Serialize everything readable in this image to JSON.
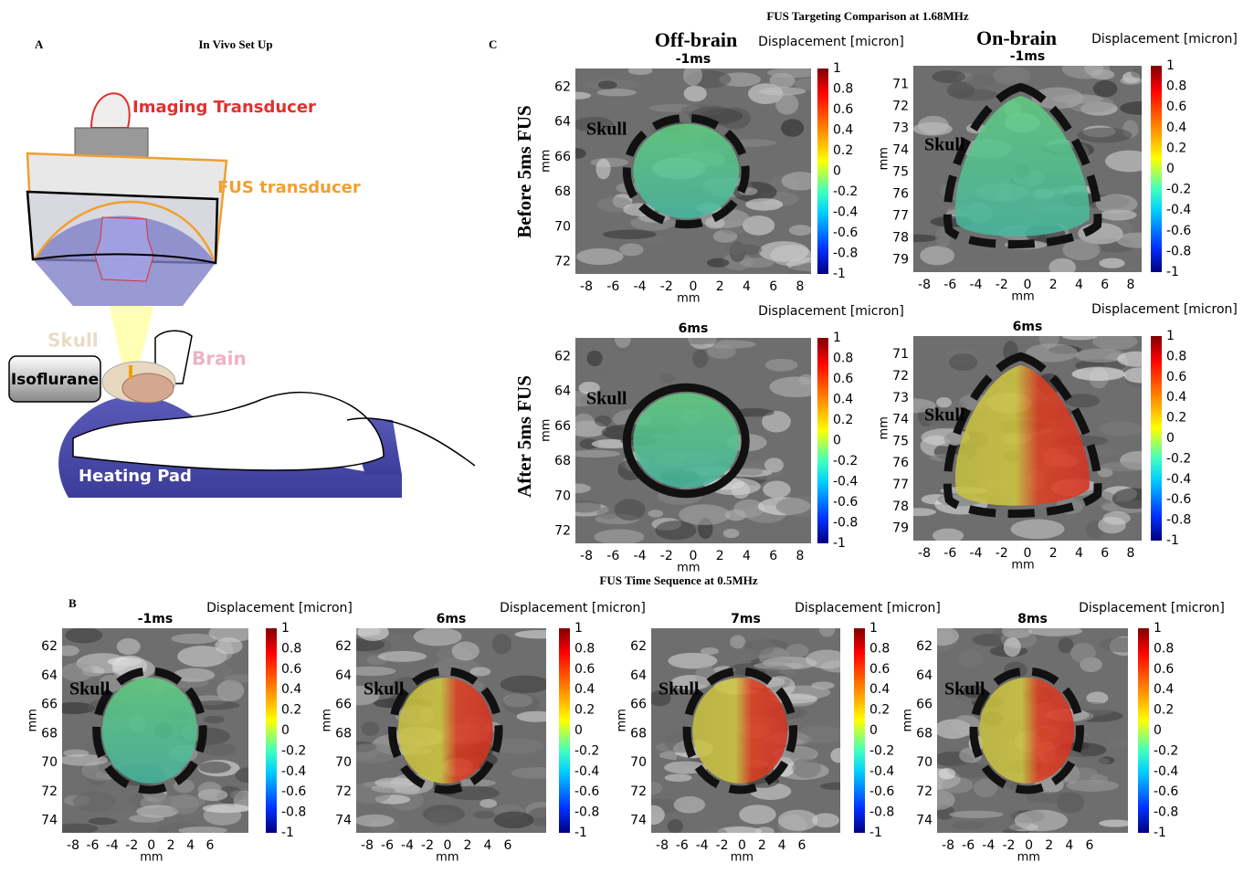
{
  "panel_a": {
    "letter": "A",
    "title": "In Vivo Set Up",
    "labels": {
      "imaging_transducer": "Imaging Transducer",
      "fus_transducer": "FUS transducer",
      "skull": "Skull",
      "brain": "Brain",
      "isoflurane": "Isoflurane",
      "heating_pad": "Heating Pad"
    }
  },
  "panel_c": {
    "letter": "C",
    "title": "FUS Targeting Comparison at 1.68MHz",
    "columns": [
      "Off-brain",
      "On-brain"
    ],
    "rows": [
      "Before 5ms FUS",
      "After 5ms FUS"
    ],
    "plots": [
      {
        "time": "-1ms",
        "colorbar_label": "Displacement [micron]",
        "colorbar_ticks": [
          "1",
          "0.8",
          "0.6",
          "0.4",
          "0.2",
          "0",
          "-0.2",
          "-0.4",
          "-0.6",
          "-0.8",
          "-1"
        ],
        "yticks": [
          "62",
          "64",
          "66",
          "68",
          "70",
          "72"
        ],
        "xticks": [
          "-8",
          "-6",
          "-4",
          "-2",
          "0",
          "2",
          "4",
          "6",
          "8"
        ],
        "xlabel": "mm",
        "ylabel": "mm",
        "skull_label": "Skull"
      },
      {
        "time": "-1ms",
        "colorbar_label": "Displacement [micron]",
        "colorbar_ticks": [
          "1",
          "0.8",
          "0.6",
          "0.4",
          "0.2",
          "0",
          "-0.2",
          "-0.4",
          "-0.6",
          "-0.8",
          "-1"
        ],
        "yticks": [
          "71",
          "72",
          "73",
          "74",
          "75",
          "76",
          "77",
          "78",
          "79"
        ],
        "xticks": [
          "-8",
          "-6",
          "-4",
          "-2",
          "0",
          "2",
          "4",
          "6",
          "8"
        ],
        "xlabel": "mm",
        "ylabel": "mm",
        "skull_label": "Skull"
      },
      {
        "time": "6ms",
        "colorbar_label": "Displacement [micron]",
        "colorbar_ticks": [
          "1",
          "0.8",
          "0.6",
          "0.4",
          "0.2",
          "0",
          "-0.2",
          "-0.4",
          "-0.6",
          "-0.8",
          "-1"
        ],
        "yticks": [
          "62",
          "64",
          "66",
          "68",
          "70",
          "72"
        ],
        "xticks": [
          "-8",
          "-6",
          "-4",
          "-2",
          "0",
          "2",
          "4",
          "6",
          "8"
        ],
        "xlabel": "mm",
        "ylabel": "mm",
        "skull_label": "Skull"
      },
      {
        "time": "6ms",
        "colorbar_label": "Displacement [micron]",
        "colorbar_ticks": [
          "1",
          "0.8",
          "0.6",
          "0.4",
          "0.2",
          "0",
          "-0.2",
          "-0.4",
          "-0.6",
          "-0.8",
          "-1"
        ],
        "yticks": [
          "71",
          "72",
          "73",
          "74",
          "75",
          "76",
          "77",
          "78",
          "79"
        ],
        "xticks": [
          "-8",
          "-6",
          "-4",
          "-2",
          "0",
          "2",
          "4",
          "6",
          "8"
        ],
        "xlabel": "mm",
        "ylabel": "mm",
        "skull_label": "Skull"
      }
    ]
  },
  "panel_b": {
    "letter": "B",
    "title": "FUS Time Sequence at 0.5MHz",
    "plots": [
      {
        "time": "-1ms",
        "colorbar_label": "Displacement [micron]",
        "colorbar_ticks": [
          "1",
          "0.8",
          "0.6",
          "0.4",
          "0.2",
          "0",
          "-0.2",
          "-0.4",
          "-0.6",
          "-0.8",
          "-1"
        ],
        "yticks": [
          "62",
          "64",
          "66",
          "68",
          "70",
          "72",
          "74"
        ],
        "xticks": [
          "-8",
          "-6",
          "-4",
          "-2",
          "0",
          "2",
          "4",
          "6"
        ],
        "xlabel": "mm",
        "ylabel": "mm",
        "skull_label": "Skull"
      },
      {
        "time": "6ms",
        "colorbar_label": "Displacement [micron]",
        "colorbar_ticks": [
          "1",
          "0.8",
          "0.6",
          "0.4",
          "0.2",
          "0",
          "-0.2",
          "-0.4",
          "-0.6",
          "-0.8",
          "-1"
        ],
        "yticks": [
          "62",
          "64",
          "66",
          "68",
          "70",
          "72",
          "74"
        ],
        "xticks": [
          "-8",
          "-6",
          "-4",
          "-2",
          "0",
          "2",
          "4",
          "6"
        ],
        "xlabel": "mm",
        "ylabel": "mm",
        "skull_label": "Skull"
      },
      {
        "time": "7ms",
        "colorbar_label": "Displacement [micron]",
        "colorbar_ticks": [
          "1",
          "0.8",
          "0.6",
          "0.4",
          "0.2",
          "0",
          "-0.2",
          "-0.4",
          "-0.6",
          "-0.8",
          "-1"
        ],
        "yticks": [
          "62",
          "64",
          "66",
          "68",
          "70",
          "72",
          "74"
        ],
        "xticks": [
          "-8",
          "-6",
          "-4",
          "-2",
          "0",
          "2",
          "4",
          "6"
        ],
        "xlabel": "mm",
        "ylabel": "mm",
        "skull_label": "Skull"
      },
      {
        "time": "8ms",
        "colorbar_label": "Displacement [micron]",
        "colorbar_ticks": [
          "1",
          "0.8",
          "0.6",
          "0.4",
          "0.2",
          "0",
          "-0.2",
          "-0.4",
          "-0.6",
          "-0.8",
          "-1"
        ],
        "yticks": [
          "62",
          "64",
          "66",
          "68",
          "70",
          "72",
          "74"
        ],
        "xticks": [
          "-8",
          "-6",
          "-4",
          "-2",
          "0",
          "2",
          "4",
          "6"
        ],
        "xlabel": "mm",
        "ylabel": "mm",
        "skull_label": "Skull"
      }
    ]
  }
}
